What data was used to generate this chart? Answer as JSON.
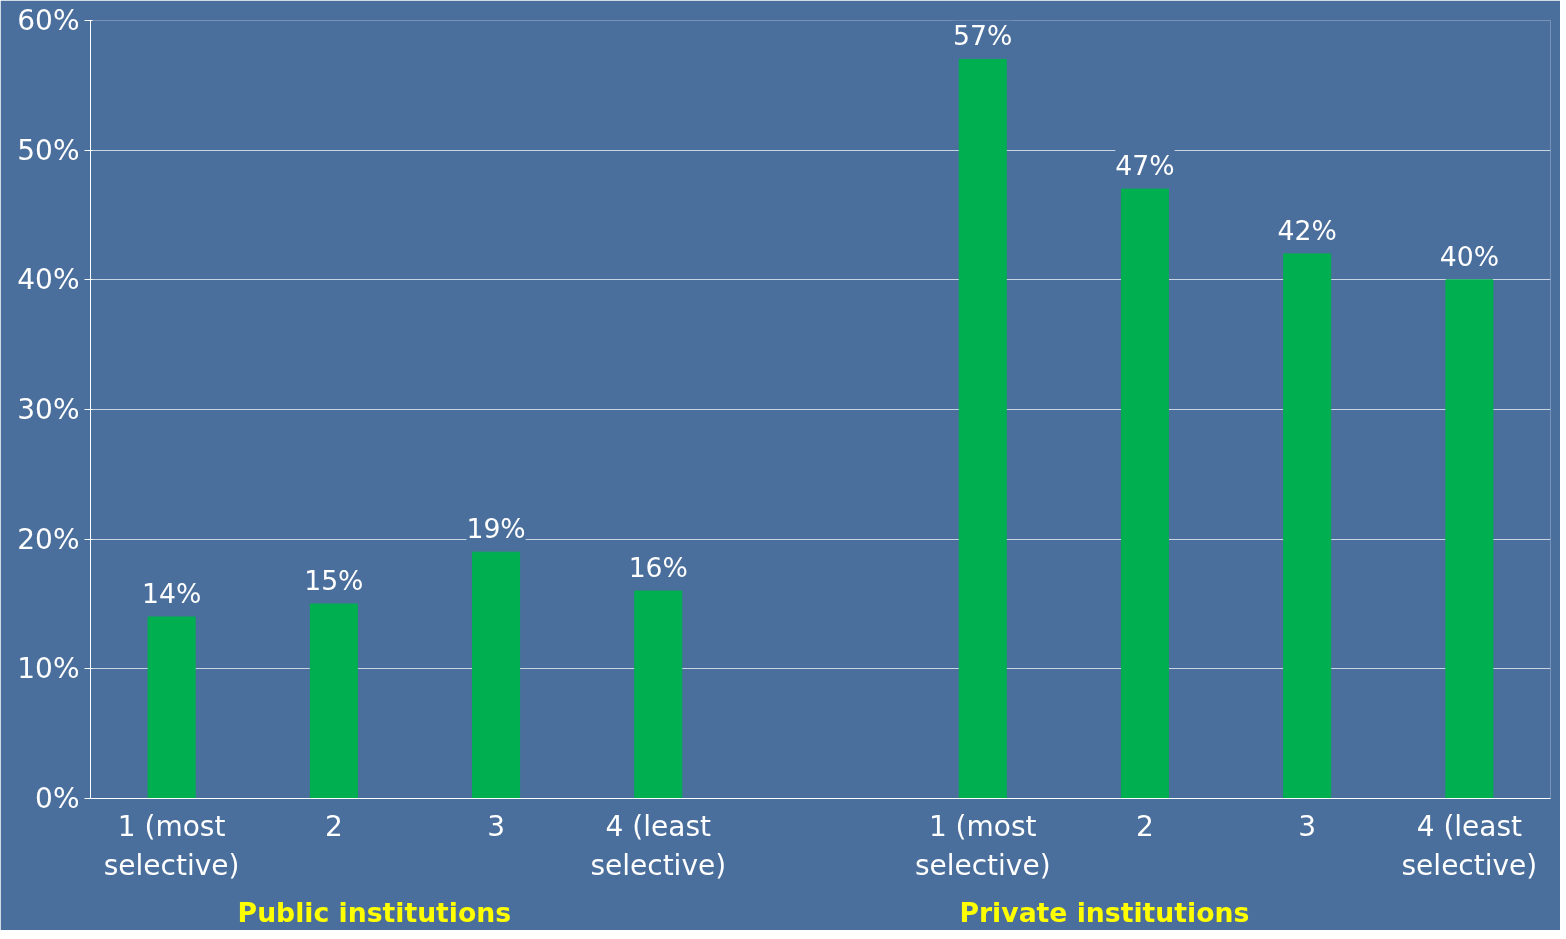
{
  "chart_data": {
    "type": "bar",
    "categories": [
      "1 (most\nselective)",
      "2",
      "3",
      "4 (least\nselective)",
      null,
      "1 (most\nselective)",
      "2",
      "3",
      "4 (least\nselective)"
    ],
    "values": [
      14,
      15,
      19,
      16,
      null,
      57,
      47,
      42,
      40
    ],
    "value_labels": [
      "14%",
      "15%",
      "19%",
      "16%",
      null,
      "57%",
      "47%",
      "42%",
      "40%"
    ],
    "color": "#00b050",
    "ylim": [
      0,
      60
    ],
    "yticks": [
      {
        "value": 0,
        "label": "0%"
      },
      {
        "value": 10,
        "label": "10%"
      },
      {
        "value": 20,
        "label": "20%"
      },
      {
        "value": 30,
        "label": "30%"
      },
      {
        "value": 40,
        "label": "40%"
      },
      {
        "value": 50,
        "label": "50%"
      },
      {
        "value": 60,
        "label": "60%"
      }
    ],
    "grid": "y",
    "annotations": [
      "Public institutions",
      "Private institutions"
    ]
  }
}
